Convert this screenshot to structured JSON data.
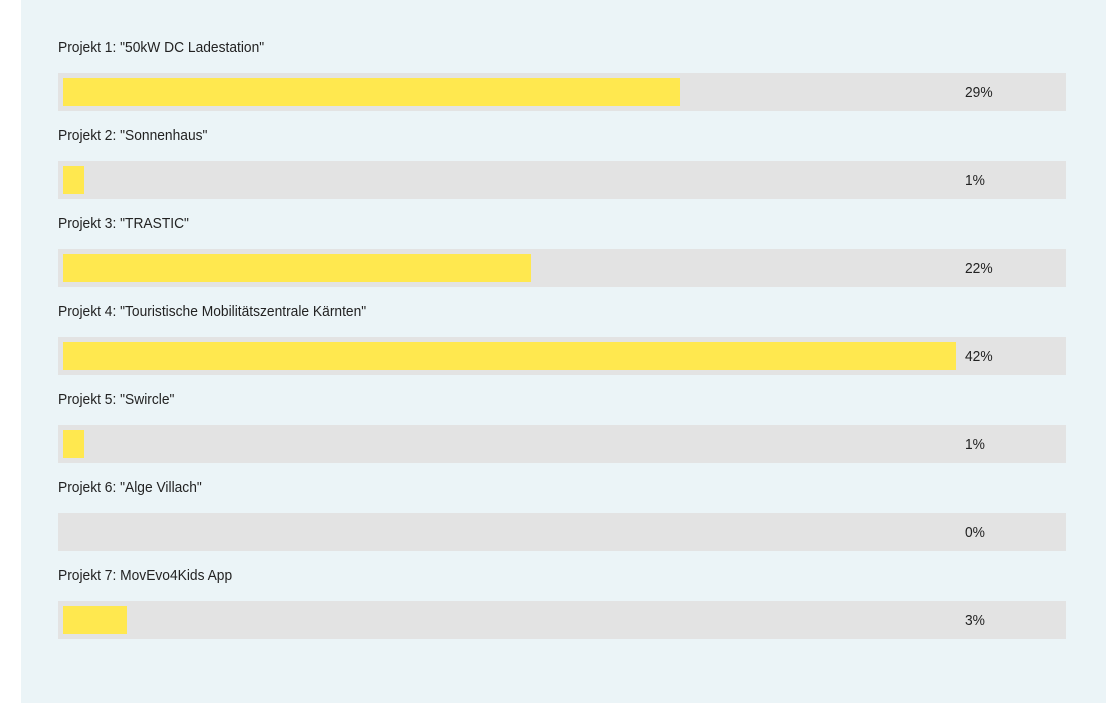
{
  "chart_data": {
    "type": "bar",
    "orientation": "horizontal",
    "categories": [
      "Projekt 1: \"50kW DC Ladestation\"",
      "Projekt 2: \"Sonnenhaus\"",
      "Projekt 3: \"TRASTIC\"",
      "Projekt 4: \"Touristische Mobilitätszentrale Kärnten\"",
      "Projekt 5: \"Swircle\"",
      "Projekt 6: \"Alge Villach\"",
      "Projekt 7: MovEvo4Kids App"
    ],
    "values": [
      29,
      1,
      22,
      42,
      1,
      0,
      3
    ],
    "value_labels": [
      "29%",
      "1%",
      "22%",
      "42%",
      "1%",
      "0%",
      "3%"
    ],
    "unit": "%",
    "max_value": 42,
    "colors": {
      "bar": "#ffe84f",
      "track": "#e3e3e3",
      "panel": "#ebf4f7",
      "text": "#222222"
    }
  }
}
